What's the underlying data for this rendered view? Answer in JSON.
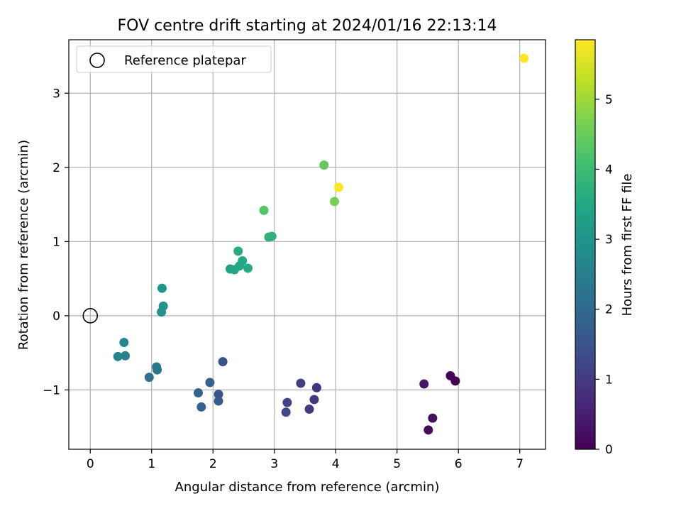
{
  "chart_data": {
    "type": "scatter",
    "title": "FOV centre drift starting at 2024/01/16 22:13:14",
    "xlabel": "Angular distance from reference (arcmin)",
    "ylabel": "Rotation from reference (arcmin)",
    "xlim": [
      -0.35,
      7.42
    ],
    "ylim": [
      -1.8,
      3.72
    ],
    "xticks": [
      0,
      1,
      2,
      3,
      4,
      5,
      6,
      7
    ],
    "yticks": [
      -1,
      0,
      1,
      2,
      3
    ],
    "xtick_labels": [
      "0",
      "1",
      "2",
      "3",
      "4",
      "5",
      "6",
      "7"
    ],
    "ytick_labels": [
      "−1",
      "0",
      "1",
      "2",
      "3"
    ],
    "grid": true,
    "legend": {
      "position": "upper-left",
      "entries": [
        "Reference platepar"
      ]
    },
    "reference_point": {
      "x": 0,
      "y": 0
    },
    "colorbar": {
      "label": "Hours from first FF file",
      "range": [
        0,
        5.85
      ],
      "ticks": [
        0,
        1,
        2,
        3,
        4,
        5
      ],
      "colormap": "viridis"
    },
    "series": [
      {
        "points": [
          {
            "x": 5.95,
            "y": -0.88,
            "t": 0.0
          },
          {
            "x": 5.87,
            "y": -0.81,
            "t": 0.08
          },
          {
            "x": 5.51,
            "y": -1.54,
            "t": 0.18
          },
          {
            "x": 5.58,
            "y": -1.38,
            "t": 0.25
          },
          {
            "x": 5.44,
            "y": -0.92,
            "t": 0.33
          },
          {
            "x": 3.69,
            "y": -0.97,
            "t": 0.85
          },
          {
            "x": 3.65,
            "y": -1.13,
            "t": 0.92
          },
          {
            "x": 3.57,
            "y": -1.26,
            "t": 1.0
          },
          {
            "x": 3.43,
            "y": -0.91,
            "t": 1.08
          },
          {
            "x": 3.21,
            "y": -1.17,
            "t": 1.17
          },
          {
            "x": 3.19,
            "y": -1.3,
            "t": 1.25
          },
          {
            "x": 2.16,
            "y": -0.62,
            "t": 1.5
          },
          {
            "x": 2.09,
            "y": -1.06,
            "t": 1.58
          },
          {
            "x": 2.09,
            "y": -1.15,
            "t": 1.67
          },
          {
            "x": 1.95,
            "y": -0.9,
            "t": 1.75
          },
          {
            "x": 1.81,
            "y": -1.23,
            "t": 1.83
          },
          {
            "x": 1.76,
            "y": -1.04,
            "t": 1.92
          },
          {
            "x": 0.96,
            "y": -0.83,
            "t": 2.17
          },
          {
            "x": 1.09,
            "y": -0.73,
            "t": 2.25
          },
          {
            "x": 1.08,
            "y": -0.69,
            "t": 2.33
          },
          {
            "x": 0.57,
            "y": -0.54,
            "t": 2.5
          },
          {
            "x": 0.45,
            "y": -0.55,
            "t": 2.58
          },
          {
            "x": 0.55,
            "y": -0.36,
            "t": 2.67
          },
          {
            "x": 1.16,
            "y": 0.05,
            "t": 2.92
          },
          {
            "x": 1.19,
            "y": 0.13,
            "t": 3.0
          },
          {
            "x": 1.17,
            "y": 0.37,
            "t": 3.08
          },
          {
            "x": 2.28,
            "y": 0.63,
            "t": 3.33
          },
          {
            "x": 2.35,
            "y": 0.62,
            "t": 3.42
          },
          {
            "x": 2.43,
            "y": 0.67,
            "t": 3.5
          },
          {
            "x": 2.48,
            "y": 0.74,
            "t": 3.5
          },
          {
            "x": 2.57,
            "y": 0.64,
            "t": 3.58
          },
          {
            "x": 2.41,
            "y": 0.87,
            "t": 3.58
          },
          {
            "x": 2.91,
            "y": 1.06,
            "t": 3.75
          },
          {
            "x": 2.96,
            "y": 1.07,
            "t": 3.75
          },
          {
            "x": 2.83,
            "y": 1.42,
            "t": 4.25
          },
          {
            "x": 3.81,
            "y": 2.03,
            "t": 4.42
          },
          {
            "x": 3.98,
            "y": 1.54,
            "t": 4.6
          },
          {
            "x": 4.05,
            "y": 1.73,
            "t": 5.85
          },
          {
            "x": 7.07,
            "y": 3.47,
            "t": 5.85
          }
        ]
      }
    ]
  }
}
